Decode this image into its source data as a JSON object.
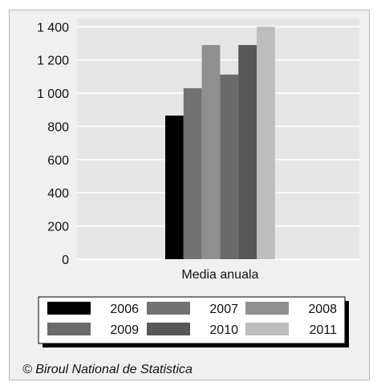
{
  "chart_data": {
    "type": "bar",
    "categories": [
      "Media anuala"
    ],
    "series": [
      {
        "name": "2006",
        "values": [
          865
        ],
        "color": "#000000"
      },
      {
        "name": "2007",
        "values": [
          1030
        ],
        "color": "#727272"
      },
      {
        "name": "2008",
        "values": [
          1290
        ],
        "color": "#8f8f8f"
      },
      {
        "name": "2009",
        "values": [
          1112
        ],
        "color": "#6a6a6a"
      },
      {
        "name": "2010",
        "values": [
          1290
        ],
        "color": "#575757"
      },
      {
        "name": "2011",
        "values": [
          1400
        ],
        "color": "#bdbdbd"
      }
    ],
    "yticks": [
      0,
      200,
      400,
      600,
      800,
      1000,
      1200,
      1400
    ],
    "ytick_labels": [
      "0",
      "200",
      "400",
      "600",
      "800",
      "1 000",
      "1 200",
      "1 400"
    ],
    "ylim": [
      0,
      1400
    ],
    "grid": true,
    "legend_position": "bottom",
    "plot_background": "#e6e6e6",
    "gridline_color": "#ffffff"
  },
  "footer": {
    "credit": "© Biroul National de Statistica"
  }
}
